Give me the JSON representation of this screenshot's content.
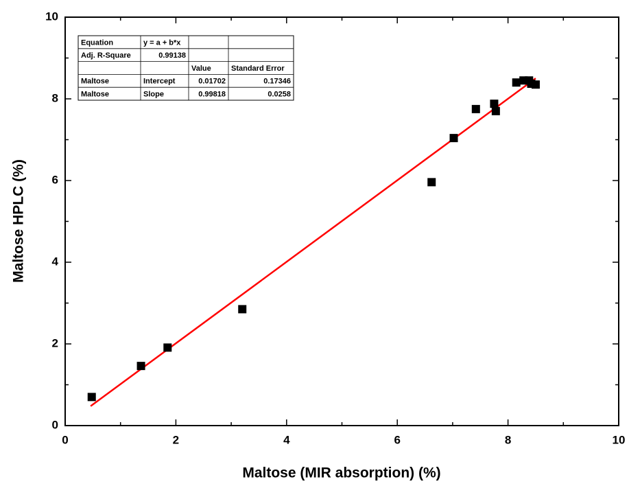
{
  "chart_data": {
    "type": "scatter",
    "xlabel": "Maltose (MIR absorption) (%)",
    "ylabel": "Maltose HPLC (%)",
    "x": [
      0.48,
      1.37,
      1.85,
      3.2,
      6.62,
      7.02,
      7.42,
      7.75,
      7.78,
      8.15,
      8.28,
      8.38,
      8.42,
      8.5
    ],
    "series": [
      {
        "color": "#000000",
        "values": [
          0.7,
          1.46,
          1.91,
          2.85,
          5.96,
          7.04,
          7.75,
          7.88,
          7.7,
          8.4,
          8.45,
          8.45,
          8.37,
          8.35
        ]
      }
    ],
    "fit_color": "#ff0000",
    "fit_x": [
      0.46,
      8.5
    ],
    "xlim": [
      0,
      10
    ],
    "ylim": [
      0,
      10
    ],
    "xticks": [
      0,
      2,
      4,
      6,
      8,
      10
    ],
    "yticks": [
      0,
      2,
      4,
      6,
      8,
      10
    ],
    "inset_table": {
      "rows": [
        [
          "Equation",
          "y = a + b*x",
          null,
          null
        ],
        [
          "Adj. R-Square",
          0.99138,
          null,
          null
        ],
        [
          null,
          null,
          "Value",
          "Standard Error"
        ],
        [
          "Maltose",
          "Intercept",
          0.01702,
          0.17346
        ],
        [
          "Maltose",
          "Slope",
          0.99818,
          0.0258
        ]
      ]
    }
  }
}
